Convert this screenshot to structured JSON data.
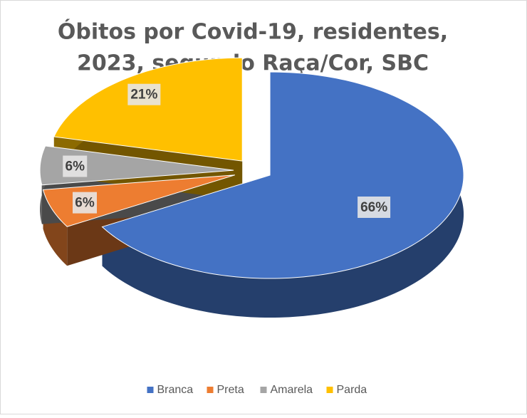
{
  "chart_data": {
    "type": "pie",
    "title": [
      "Óbitos por Covid-19, residentes,",
      "2023, segundo Raça/Cor,  SBC"
    ],
    "categories": [
      "Branca",
      "Preta",
      "Amarela",
      "Parda"
    ],
    "values": [
      66,
      6,
      6,
      21
    ],
    "value_labels": [
      "66%",
      "6%",
      "6%",
      "21%"
    ],
    "colors": [
      "#4472c4",
      "#ed7d31",
      "#a5a5a5",
      "#ffc000"
    ],
    "legend": "bottom"
  }
}
